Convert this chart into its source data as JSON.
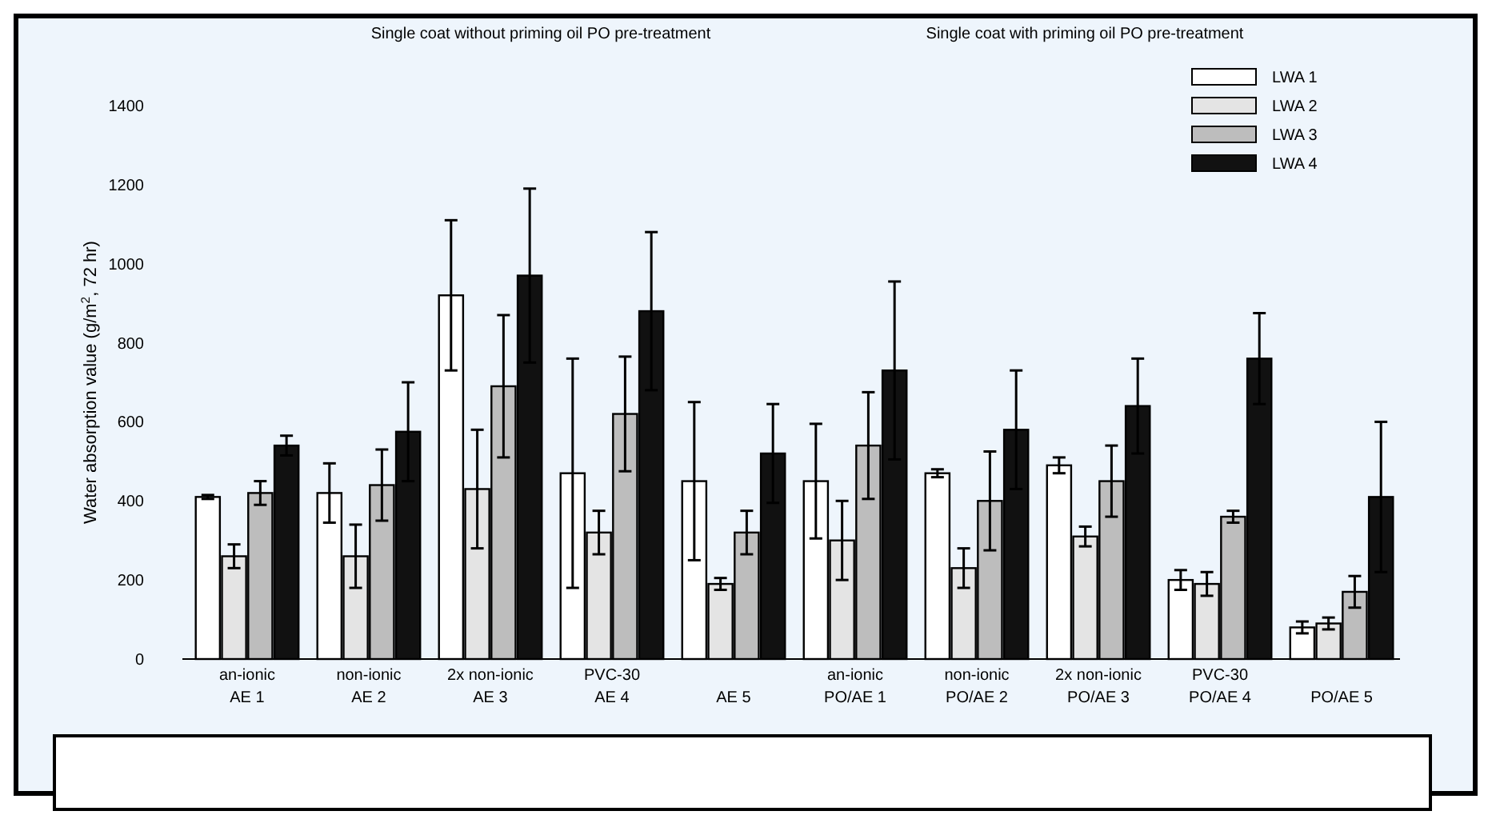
{
  "chart_data": {
    "type": "bar",
    "ylabel": "Water absorption value (g/m$^{2}$, 72 hr)",
    "annotations": [
      "Single coat without priming oil PO pre-treatment",
      "Single coat with priming oil PO pre-treatment"
    ],
    "categories": [
      "an-ionic\nAE 1",
      "non-ionic\nAE 2",
      "2x non-ionic\nAE 3",
      "PVC-30\nAE 4",
      "AE 5",
      "an-ionic\nPO/AE 1",
      "non-ionic\nPO/AE 2",
      "2x non-ionic\nPO/AE 3",
      "PVC-30\nPO/AE 4",
      "PO/AE 5"
    ],
    "ylim": [
      0,
      1400
    ],
    "yticks": [
      0,
      200,
      400,
      600,
      800,
      1000,
      1200,
      1400
    ],
    "legend": "top right",
    "series": [
      {
        "name": "LWA 1",
        "color": "#ffffff",
        "values": [
          410,
          420,
          920,
          470,
          450,
          450,
          470,
          490,
          200,
          80
        ],
        "errors": [
          5,
          75,
          190,
          290,
          200,
          145,
          10,
          20,
          25,
          15
        ]
      },
      {
        "name": "LWA 2",
        "color": "#e4e4e4",
        "values": [
          260,
          260,
          430,
          320,
          190,
          300,
          230,
          310,
          190,
          90
        ],
        "errors": [
          30,
          80,
          150,
          55,
          15,
          100,
          50,
          25,
          30,
          15
        ]
      },
      {
        "name": "LWA 3",
        "color": "#bdbdbd",
        "values": [
          420,
          440,
          690,
          620,
          320,
          540,
          400,
          450,
          360,
          170
        ],
        "errors": [
          30,
          90,
          180,
          145,
          55,
          135,
          125,
          90,
          15,
          40
        ]
      },
      {
        "name": "LWA 4",
        "color": "#111111",
        "values": [
          540,
          575,
          970,
          880,
          520,
          730,
          580,
          640,
          760,
          410
        ],
        "errors": [
          25,
          125,
          220,
          200,
          125,
          225,
          150,
          120,
          115,
          190
        ]
      }
    ]
  }
}
